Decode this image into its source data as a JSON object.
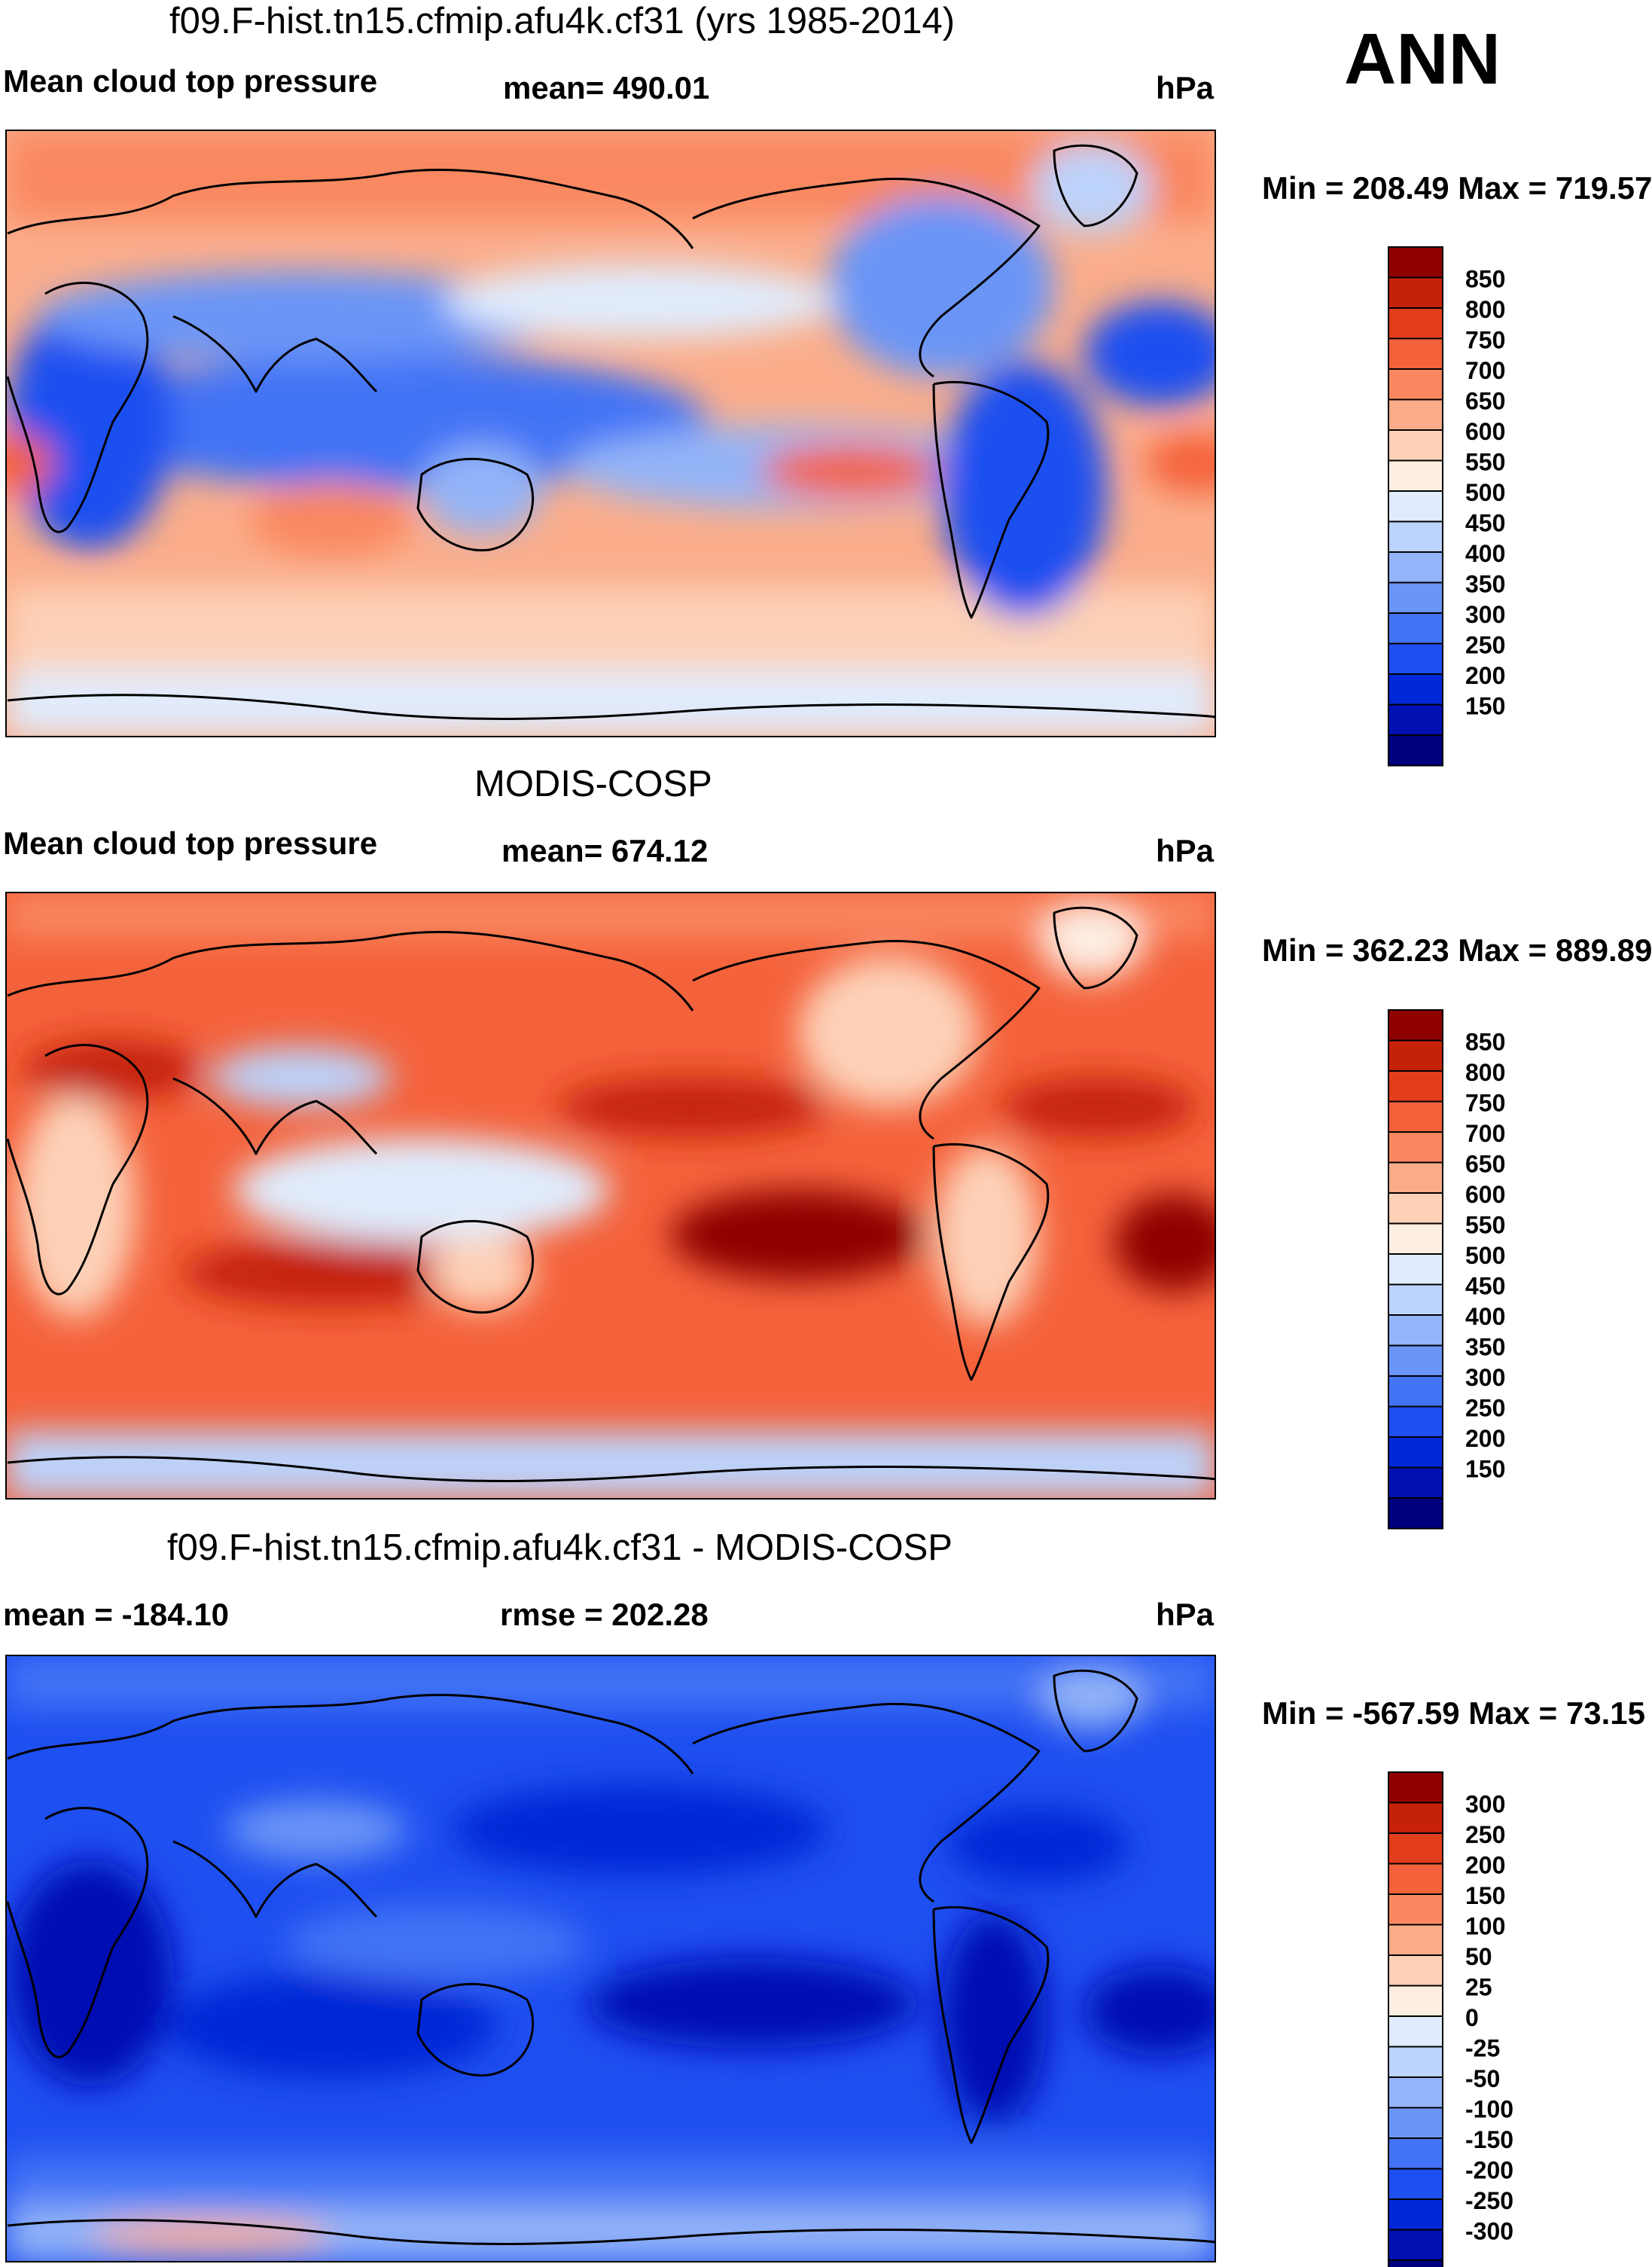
{
  "season": "ANN",
  "colors": {
    "abs_scale": [
      "#00007f",
      "#0010b2",
      "#0028d6",
      "#1e4ff0",
      "#4373f5",
      "#6b95f7",
      "#93b4f8",
      "#bcd3fb",
      "#e0ecfd",
      "#fdeee2",
      "#fdd1b7",
      "#fbad8a",
      "#f98860",
      "#f4623b",
      "#e23e1c",
      "#c52207",
      "#8e0000"
    ],
    "diff_scale": [
      "#00007f",
      "#0010b2",
      "#0028d6",
      "#1e4ff0",
      "#4373f5",
      "#6b95f7",
      "#93b4f8",
      "#bcd3fb",
      "#e0ecfd",
      "#fdeee2",
      "#fdd1b7",
      "#fbad8a",
      "#f98860",
      "#f4623b",
      "#e23e1c",
      "#c52207",
      "#8e0000"
    ]
  },
  "panels": [
    {
      "title": "f09.F-hist.tn15.cfmip.afu4k.cf31 (yrs 1985-2014)",
      "left": "Mean cloud top pressure",
      "center": "mean= 490.01",
      "units": "hPa",
      "minmax": "Min = 208.49 Max = 719.57"
    },
    {
      "title": "MODIS-COSP",
      "left": "Mean cloud top pressure",
      "center": "mean= 674.12",
      "units": "hPa",
      "minmax": "Min = 362.23 Max = 889.89"
    },
    {
      "title": "f09.F-hist.tn15.cfmip.afu4k.cf31 - MODIS-COSP",
      "left": "mean = -184.10",
      "center": "rmse = 202.28",
      "units": "hPa",
      "minmax": "Min = -567.59 Max =  73.15"
    }
  ],
  "chart_data": [
    {
      "type": "heatmap",
      "title": "f09.F-hist.tn15.cfmip.afu4k.cf31 (yrs 1985-2014)",
      "variable": "Mean cloud top pressure",
      "units": "hPa",
      "mean": 490.01,
      "min": 208.49,
      "max": 719.57,
      "colorbar_levels": [
        850,
        800,
        750,
        700,
        650,
        600,
        550,
        500,
        450,
        400,
        350,
        300,
        250,
        200,
        150
      ]
    },
    {
      "type": "heatmap",
      "title": "MODIS-COSP",
      "variable": "Mean cloud top pressure",
      "units": "hPa",
      "mean": 674.12,
      "min": 362.23,
      "max": 889.89,
      "colorbar_levels": [
        850,
        800,
        750,
        700,
        650,
        600,
        550,
        500,
        450,
        400,
        350,
        300,
        250,
        200,
        150
      ]
    },
    {
      "type": "heatmap",
      "title": "f09.F-hist.tn15.cfmip.afu4k.cf31 - MODIS-COSP",
      "units": "hPa",
      "mean": -184.1,
      "rmse": 202.28,
      "min": -567.59,
      "max": 73.15,
      "colorbar_levels": [
        300,
        250,
        200,
        150,
        100,
        50,
        25,
        0,
        -25,
        -50,
        -100,
        -150,
        -200,
        -250,
        -300
      ]
    }
  ]
}
